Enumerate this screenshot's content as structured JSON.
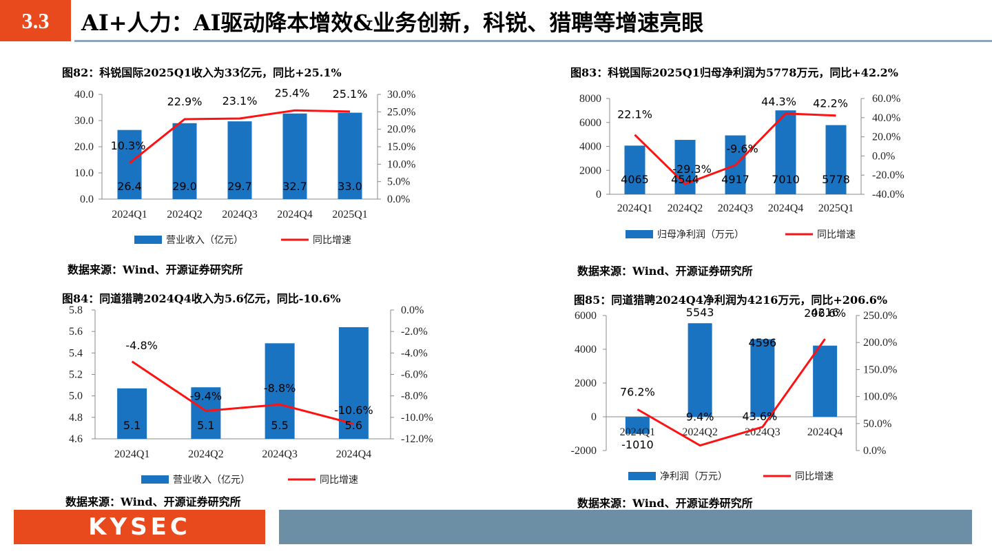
{
  "header": {
    "section": "3.3",
    "title": "AI+人力：AI驱动降本增效&业务创新，科锐、猎聘等增速亮眼"
  },
  "footer": {
    "logo": "KYSEC"
  },
  "colors": {
    "bar": "#1a73c1",
    "line": "#ff1111",
    "accent": "#e8491d",
    "footer_bar": "#6d8fa5"
  },
  "panels": [
    {
      "title": "图82：科锐国际2025Q1收入为33亿元，同比+25.1%",
      "source": "数据来源：Wind、开源证券研究所"
    },
    {
      "title": "图83：科锐国际2025Q1归母净利润为5778万元，同比+42.2%",
      "source": "数据来源：Wind、开源证券研究所"
    },
    {
      "title": "图84：同道猎聘2024Q4收入为5.6亿元，同比-10.6%",
      "source": "数据来源：Wind、开源证券研究所"
    },
    {
      "title": "图85：同道猎聘2024Q4净利润为4216万元，同比+206.6%",
      "source": "数据来源：Wind、开源证券研究所"
    }
  ],
  "chart_data": [
    {
      "type": "bar",
      "categories": [
        "2024Q1",
        "2024Q2",
        "2024Q3",
        "2024Q4",
        "2025Q1"
      ],
      "bar_series": {
        "name": "营业收入（亿元）",
        "values": [
          26.4,
          29.0,
          29.7,
          32.7,
          33.0
        ],
        "labels": [
          "26.4",
          "29.0",
          "29.7",
          "32.7",
          "33.0"
        ]
      },
      "line_series": {
        "name": "同比增速",
        "values": [
          10.3,
          22.9,
          23.1,
          25.4,
          25.1
        ],
        "labels": [
          "10.3%",
          "22.9%",
          "23.1%",
          "25.4%",
          "25.1%"
        ]
      },
      "y_left": {
        "min": 0,
        "max": 40,
        "ticks": [
          "40.0",
          "30.0",
          "20.0",
          "10.0",
          "0.0"
        ]
      },
      "y_right": {
        "min": 0,
        "max": 30,
        "ticks": [
          "30.0%",
          "25.0%",
          "20.0%",
          "15.0%",
          "10.0%",
          "5.0%",
          "0.0%"
        ]
      }
    },
    {
      "type": "bar",
      "categories": [
        "2024Q1",
        "2024Q2",
        "2024Q3",
        "2024Q4",
        "2025Q1"
      ],
      "bar_series": {
        "name": "归母净利润（万元）",
        "values": [
          4065,
          4544,
          4917,
          7010,
          5778
        ],
        "labels": [
          "4065",
          "4544",
          "4917",
          "7010",
          "5778"
        ]
      },
      "line_series": {
        "name": "同比增速",
        "values": [
          22.1,
          -29.3,
          -9.6,
          44.3,
          42.2
        ],
        "labels": [
          "22.1%",
          "-29.3%",
          "-9.6%",
          "44.3%",
          "42.2%"
        ]
      },
      "y_left": {
        "min": 0,
        "max": 8000,
        "ticks": [
          "8000",
          "6000",
          "4000",
          "2000",
          "0"
        ]
      },
      "y_right": {
        "min": -40,
        "max": 60,
        "ticks": [
          "60.0%",
          "40.0%",
          "20.0%",
          "0.0%",
          "-20.0%",
          "-40.0%"
        ]
      }
    },
    {
      "type": "bar",
      "categories": [
        "2024Q1",
        "2024Q2",
        "2024Q3",
        "2024Q4"
      ],
      "bar_series": {
        "name": "营业收入（亿元）",
        "values": [
          5.07,
          5.08,
          5.49,
          5.64
        ],
        "labels": [
          "5.1",
          "5.1",
          "5.5",
          "5.6"
        ]
      },
      "line_series": {
        "name": "同比增速",
        "values": [
          -4.8,
          -9.4,
          -8.8,
          -10.6
        ],
        "labels": [
          "-4.8%",
          "-9.4%",
          "-8.8%",
          "-10.6%"
        ]
      },
      "y_left": {
        "min": 4.6,
        "max": 5.8,
        "ticks": [
          "5.8",
          "5.6",
          "5.4",
          "5.2",
          "5.0",
          "4.8",
          "4.6"
        ]
      },
      "y_right": {
        "min": -12,
        "max": 0,
        "ticks": [
          "0.0%",
          "-2.0%",
          "-4.0%",
          "-6.0%",
          "-8.0%",
          "-10.0%",
          "-12.0%"
        ]
      }
    },
    {
      "type": "bar",
      "categories": [
        "2024Q1",
        "2024Q2",
        "2024Q3",
        "2024Q4"
      ],
      "bar_series": {
        "name": "净利润（万元）",
        "values": [
          -1010,
          5543,
          4596,
          4216
        ],
        "labels": [
          "-1010",
          "5543",
          "4596",
          "4216"
        ]
      },
      "line_series": {
        "name": "同比增速",
        "values": [
          76.2,
          9.4,
          43.6,
          206.6
        ],
        "labels": [
          "76.2%",
          "9.4%",
          "43.6%",
          "206.6%"
        ]
      },
      "y_left": {
        "min": -2000,
        "max": 6000,
        "ticks": [
          "6000",
          "4000",
          "2000",
          "0",
          "-2000"
        ]
      },
      "y_right": {
        "min": 0,
        "max": 250,
        "ticks": [
          "250.0%",
          "200.0%",
          "150.0%",
          "100.0%",
          "50.0%",
          "0.0%"
        ]
      }
    }
  ]
}
